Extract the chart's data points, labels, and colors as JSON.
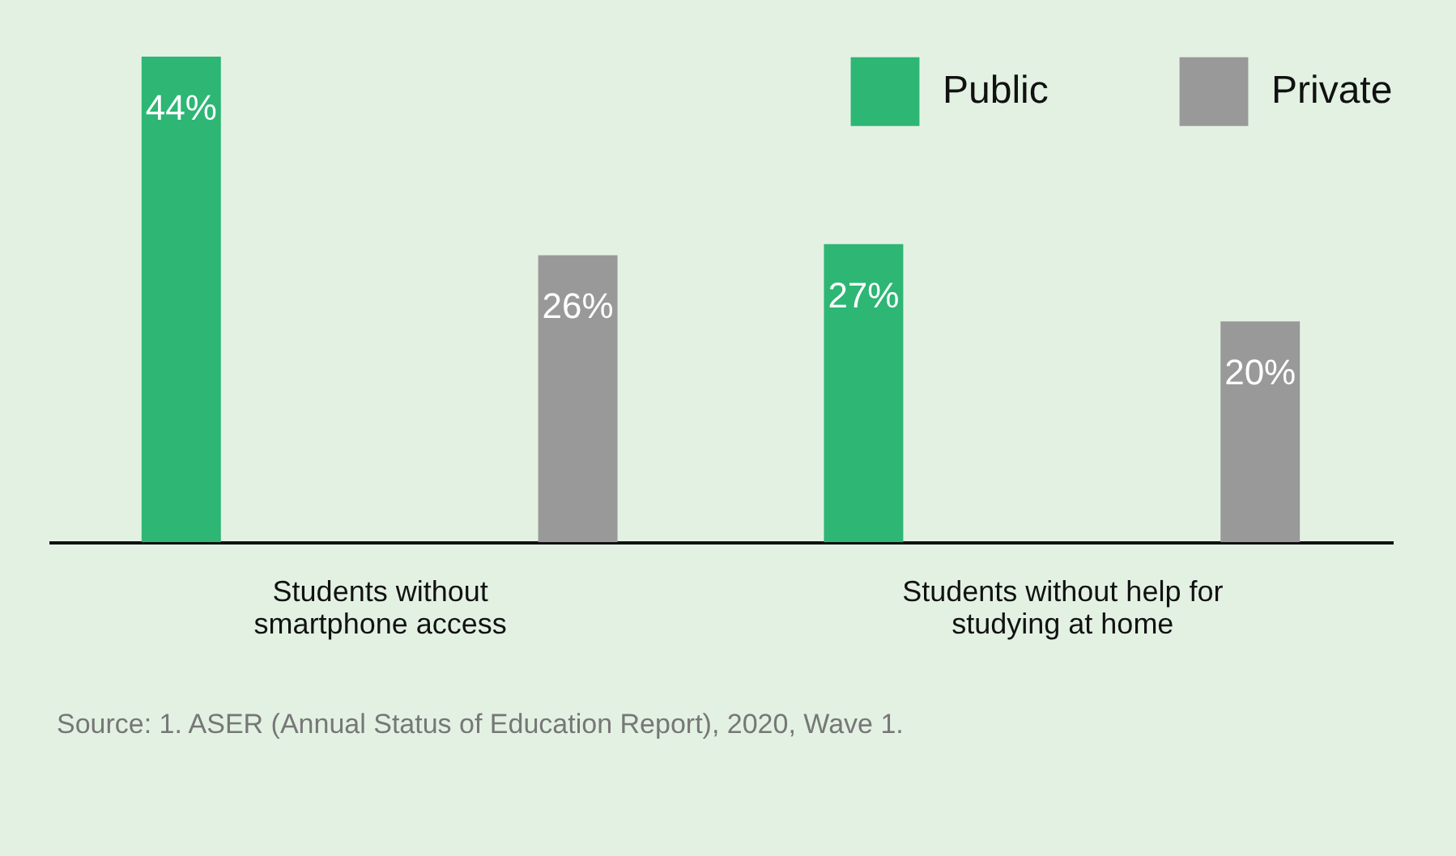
{
  "chart_data": {
    "type": "bar",
    "categories": [
      "Students without smartphone access",
      "Students without help for studying at home"
    ],
    "series": [
      {
        "name": "Public",
        "color": "#2db674",
        "values": [
          44,
          27
        ],
        "value_labels": [
          "44%",
          "27%"
        ]
      },
      {
        "name": "Private",
        "color": "#999999",
        "values": [
          26,
          20
        ],
        "value_labels": [
          "26%",
          "20%"
        ]
      }
    ],
    "legend": "top right",
    "grid": false,
    "annotations": [
      "Source: 1. ASER (Annual Status of Education Report), 2020, Wave 1."
    ]
  }
}
